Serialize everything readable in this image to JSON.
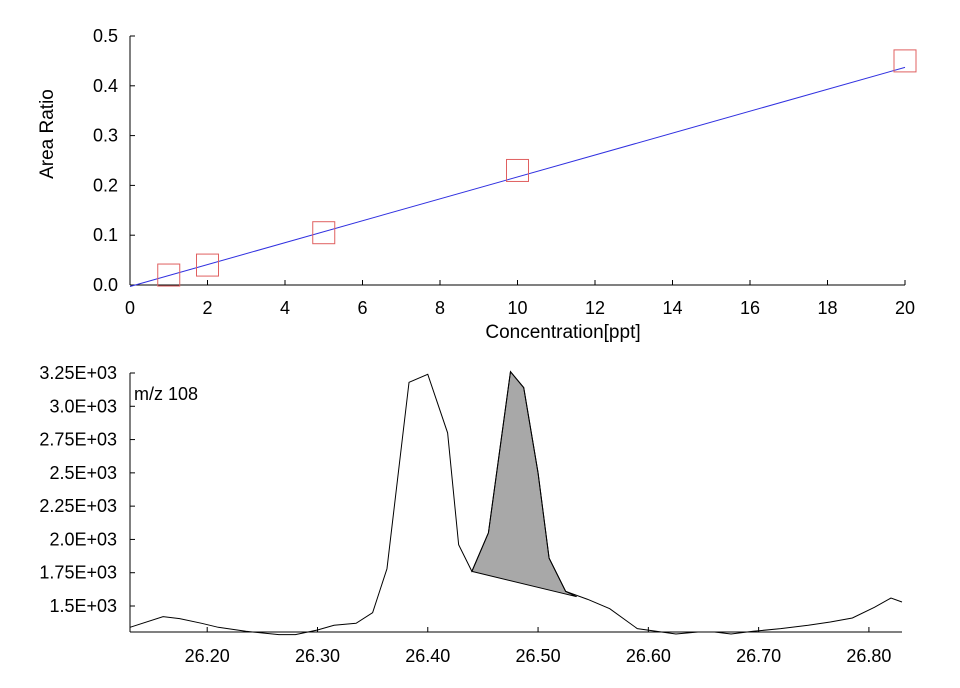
{
  "chart_data": [
    {
      "type": "scatter",
      "title": "",
      "xlabel": "Concentration[ppt]",
      "ylabel": "Area Ratio",
      "xlim": [
        0,
        20
      ],
      "ylim": [
        0,
        0.5
      ],
      "xticks": [
        "0",
        "2",
        "4",
        "6",
        "8",
        "10",
        "12",
        "14",
        "16",
        "18",
        "20"
      ],
      "yticks": [
        "0.0",
        "0.1",
        "0.2",
        "0.3",
        "0.4",
        "0.5"
      ],
      "points": {
        "x": [
          1,
          2,
          5,
          10,
          20
        ],
        "y": [
          0.02,
          0.04,
          0.105,
          0.23,
          0.45
        ]
      },
      "fit_line": {
        "x": [
          0,
          20
        ],
        "y": [
          -0.003,
          0.437
        ]
      },
      "colors": {
        "points": "#e06060",
        "fit": "#3030e0"
      }
    },
    {
      "type": "line",
      "annotation": "m/z 108",
      "xlim": [
        26.13,
        26.83
      ],
      "ylim": [
        1250,
        3250
      ],
      "xticks": [
        "26.20",
        "26.30",
        "26.40",
        "26.50",
        "26.60",
        "26.70",
        "26.80"
      ],
      "yticks": [
        "1.5E+03",
        "1.75E+03",
        "2.0E+03",
        "2.25E+03",
        "2.5E+03",
        "2.75E+03",
        "3.0E+03",
        "3.25E+03"
      ],
      "x": [
        26.13,
        26.16,
        26.175,
        26.195,
        26.21,
        26.235,
        26.265,
        26.28,
        26.3,
        26.315,
        26.335,
        26.35,
        26.363,
        26.383,
        26.4,
        26.418,
        26.428,
        26.44,
        26.455,
        26.475,
        26.487,
        26.5,
        26.51,
        26.525,
        26.545,
        26.565,
        26.59,
        26.625,
        26.645,
        26.66,
        26.675,
        26.695,
        26.72,
        26.745,
        26.765,
        26.785,
        26.805,
        26.82,
        26.83
      ],
      "y": [
        1340,
        1420,
        1405,
        1370,
        1340,
        1310,
        1285,
        1285,
        1320,
        1355,
        1370,
        1450,
        1780,
        3180,
        3240,
        2800,
        1960,
        1760,
        2050,
        3260,
        3140,
        2500,
        1860,
        1610,
        1550,
        1480,
        1330,
        1290,
        1305,
        1305,
        1290,
        1310,
        1330,
        1355,
        1380,
        1410,
        1490,
        1560,
        1530
      ],
      "shaded_peak": {
        "x": [
          26.44,
          26.455,
          26.475,
          26.487,
          26.5,
          26.51,
          26.525,
          26.535
        ],
        "y": [
          1760,
          2050,
          3260,
          3140,
          2500,
          1860,
          1610,
          1570
        ],
        "baseline": [
          [
            26.44,
            1760
          ],
          [
            26.535,
            1570
          ]
        ]
      },
      "colors": {
        "trace": "#000000",
        "fill": "#a8a8a8"
      }
    }
  ]
}
